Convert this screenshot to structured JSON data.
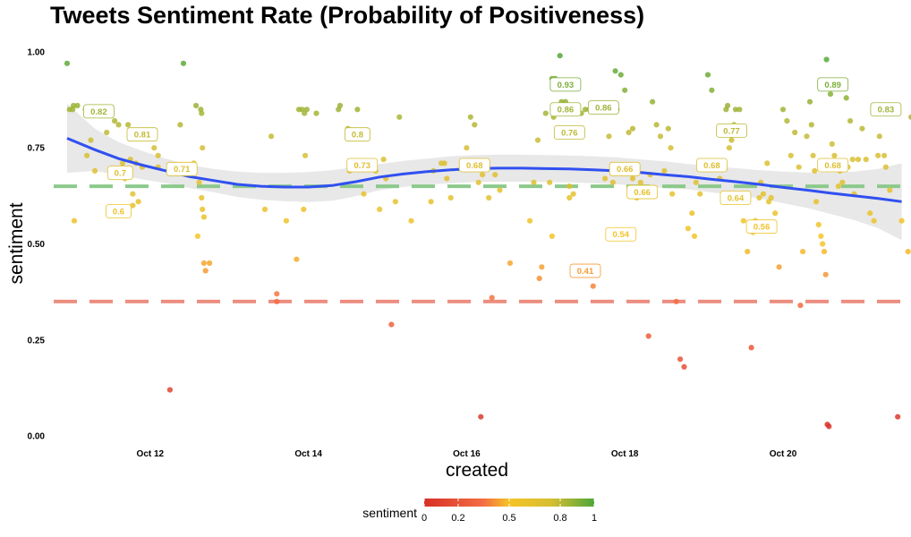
{
  "chart_data": {
    "type": "scatter",
    "title": "Tweets Sentiment Rate (Probability of Positiveness)",
    "xlabel": "created",
    "ylabel": "sentiment",
    "x_ticks": [
      {
        "x": 12,
        "label": "Oct 12"
      },
      {
        "x": 14,
        "label": "Oct 14"
      },
      {
        "x": 16,
        "label": "Oct 16"
      },
      {
        "x": 18,
        "label": "Oct 18"
      },
      {
        "x": 20,
        "label": "Oct 20"
      }
    ],
    "y_ticks": [
      {
        "y": 0,
        "label": "0.00"
      },
      {
        "y": 0.25,
        "label": "0.25"
      },
      {
        "y": 0.5,
        "label": "0.50"
      },
      {
        "y": 0.75,
        "label": "0.75"
      },
      {
        "y": 1,
        "label": "1.00"
      }
    ],
    "xlim": [
      10.78,
      21.55
    ],
    "ylim": [
      -0.03,
      1.03
    ],
    "grid": false,
    "reference_lines": [
      {
        "y": 0.65,
        "color": "#8cc98c",
        "style": "dashed"
      },
      {
        "y": 0.35,
        "color": "#ec8e80",
        "style": "dashed"
      }
    ],
    "color_scale": {
      "stops": [
        {
          "value": 0,
          "color": "#d73027"
        },
        {
          "value": 0.35,
          "color": "#f46d43"
        },
        {
          "value": 0.5,
          "color": "#f5c426"
        },
        {
          "value": 0.75,
          "color": "#d6be33"
        },
        {
          "value": 1,
          "color": "#4ea63a"
        }
      ]
    },
    "points": [
      [
        10.95,
        0.97
      ],
      [
        10.98,
        0.85
      ],
      [
        11.02,
        0.85
      ],
      [
        11.03,
        0.86
      ],
      [
        11.08,
        0.86
      ],
      [
        11.04,
        0.56
      ],
      [
        11.18,
        0.85
      ],
      [
        11.2,
        0.73
      ],
      [
        11.25,
        0.77
      ],
      [
        11.3,
        0.69
      ],
      [
        11.45,
        0.79
      ],
      [
        11.55,
        0.82
      ],
      [
        11.6,
        0.81
      ],
      [
        11.65,
        0.71
      ],
      [
        11.68,
        0.67
      ],
      [
        11.72,
        0.81
      ],
      [
        11.75,
        0.72
      ],
      [
        11.78,
        0.6
      ],
      [
        11.78,
        0.63
      ],
      [
        11.82,
        0.71
      ],
      [
        11.85,
        0.61
      ],
      [
        11.88,
        0.78
      ],
      [
        11.9,
        0.7
      ],
      [
        12.05,
        0.75
      ],
      [
        12.1,
        0.73
      ],
      [
        12.1,
        0.7
      ],
      [
        12.25,
        0.12
      ],
      [
        12.38,
        0.81
      ],
      [
        12.42,
        0.97
      ],
      [
        12.55,
        0.71
      ],
      [
        12.58,
        0.86
      ],
      [
        12.6,
        0.52
      ],
      [
        12.62,
        0.66
      ],
      [
        12.64,
        0.85
      ],
      [
        12.65,
        0.84
      ],
      [
        12.65,
        0.62
      ],
      [
        12.66,
        0.59
      ],
      [
        12.68,
        0.57
      ],
      [
        12.68,
        0.45
      ],
      [
        12.7,
        0.43
      ],
      [
        12.75,
        0.45
      ],
      [
        12.66,
        0.75
      ],
      [
        13.45,
        0.59
      ],
      [
        13.53,
        0.78
      ],
      [
        13.6,
        0.37
      ],
      [
        13.6,
        0.35
      ],
      [
        13.72,
        0.56
      ],
      [
        13.85,
        0.46
      ],
      [
        13.88,
        0.85
      ],
      [
        13.92,
        0.85
      ],
      [
        13.95,
        0.84
      ],
      [
        13.96,
        0.73
      ],
      [
        13.98,
        0.85
      ],
      [
        13.94,
        0.59
      ],
      [
        14.1,
        0.84
      ],
      [
        14.38,
        0.85
      ],
      [
        14.4,
        0.86
      ],
      [
        14.5,
        0.8
      ],
      [
        14.52,
        0.69
      ],
      [
        14.62,
        0.85
      ],
      [
        14.7,
        0.63
      ],
      [
        14.85,
        0.69
      ],
      [
        14.9,
        0.59
      ],
      [
        14.95,
        0.72
      ],
      [
        14.98,
        0.67
      ],
      [
        15.05,
        0.29
      ],
      [
        15.1,
        0.61
      ],
      [
        15.15,
        0.83
      ],
      [
        15.3,
        0.56
      ],
      [
        15.55,
        0.61
      ],
      [
        15.58,
        0.69
      ],
      [
        15.68,
        0.71
      ],
      [
        15.72,
        0.71
      ],
      [
        15.75,
        0.67
      ],
      [
        15.8,
        0.62
      ],
      [
        16.0,
        0.75
      ],
      [
        16.05,
        0.83
      ],
      [
        16.1,
        0.81
      ],
      [
        16.12,
        0.71
      ],
      [
        16.15,
        0.66
      ],
      [
        16.18,
        0.05
      ],
      [
        16.2,
        0.68
      ],
      [
        16.28,
        0.62
      ],
      [
        16.32,
        0.36
      ],
      [
        16.36,
        0.68
      ],
      [
        16.42,
        0.64
      ],
      [
        16.55,
        0.45
      ],
      [
        16.8,
        0.56
      ],
      [
        16.85,
        0.66
      ],
      [
        16.9,
        0.77
      ],
      [
        16.92,
        0.41
      ],
      [
        16.95,
        0.44
      ],
      [
        17.0,
        0.84
      ],
      [
        17.05,
        0.66
      ],
      [
        17.08,
        0.52
      ],
      [
        17.08,
        0.93
      ],
      [
        17.1,
        0.83
      ],
      [
        17.12,
        0.93
      ],
      [
        17.15,
        0.84
      ],
      [
        17.18,
        0.99
      ],
      [
        17.2,
        0.87
      ],
      [
        17.25,
        0.87
      ],
      [
        17.3,
        0.62
      ],
      [
        17.3,
        0.65
      ],
      [
        17.35,
        0.63
      ],
      [
        17.38,
        0.85
      ],
      [
        17.4,
        0.85
      ],
      [
        17.45,
        0.84
      ],
      [
        17.5,
        0.85
      ],
      [
        17.55,
        0.85
      ],
      [
        17.6,
        0.39
      ],
      [
        17.65,
        0.85
      ],
      [
        17.75,
        0.67
      ],
      [
        17.8,
        0.78
      ],
      [
        17.85,
        0.66
      ],
      [
        17.88,
        0.95
      ],
      [
        17.9,
        0.85
      ],
      [
        17.95,
        0.94
      ],
      [
        18.0,
        0.9
      ],
      [
        18.05,
        0.79
      ],
      [
        18.1,
        0.8
      ],
      [
        18.1,
        0.67
      ],
      [
        18.15,
        0.62
      ],
      [
        18.2,
        0.66
      ],
      [
        18.22,
        0.64
      ],
      [
        18.25,
        0.63
      ],
      [
        18.3,
        0.26
      ],
      [
        18.32,
        0.68
      ],
      [
        18.35,
        0.87
      ],
      [
        18.4,
        0.81
      ],
      [
        18.45,
        0.78
      ],
      [
        18.5,
        0.69
      ],
      [
        18.55,
        0.8
      ],
      [
        18.58,
        0.75
      ],
      [
        18.6,
        0.63
      ],
      [
        18.65,
        0.35
      ],
      [
        18.7,
        0.2
      ],
      [
        18.75,
        0.18
      ],
      [
        18.8,
        0.54
      ],
      [
        18.85,
        0.58
      ],
      [
        18.88,
        0.52
      ],
      [
        18.9,
        0.66
      ],
      [
        18.95,
        0.63
      ],
      [
        19.05,
        0.94
      ],
      [
        19.1,
        0.9
      ],
      [
        19.2,
        0.67
      ],
      [
        19.28,
        0.85
      ],
      [
        19.3,
        0.86
      ],
      [
        19.32,
        0.75
      ],
      [
        19.35,
        0.77
      ],
      [
        19.38,
        0.81
      ],
      [
        19.4,
        0.85
      ],
      [
        19.45,
        0.85
      ],
      [
        19.5,
        0.56
      ],
      [
        19.55,
        0.48
      ],
      [
        19.6,
        0.23
      ],
      [
        19.62,
        0.53
      ],
      [
        19.65,
        0.56
      ],
      [
        19.7,
        0.62
      ],
      [
        19.72,
        0.66
      ],
      [
        19.75,
        0.63
      ],
      [
        19.8,
        0.71
      ],
      [
        19.82,
        0.61
      ],
      [
        19.85,
        0.62
      ],
      [
        19.9,
        0.58
      ],
      [
        19.95,
        0.44
      ],
      [
        20.0,
        0.85
      ],
      [
        20.05,
        0.82
      ],
      [
        20.1,
        0.73
      ],
      [
        20.15,
        0.79
      ],
      [
        20.2,
        0.7
      ],
      [
        20.22,
        0.34
      ],
      [
        20.25,
        0.48
      ],
      [
        20.3,
        0.78
      ],
      [
        20.34,
        0.87
      ],
      [
        20.36,
        0.81
      ],
      [
        20.38,
        0.73
      ],
      [
        20.4,
        0.69
      ],
      [
        20.42,
        0.61
      ],
      [
        20.45,
        0.55
      ],
      [
        20.48,
        0.52
      ],
      [
        20.5,
        0.5
      ],
      [
        20.52,
        0.48
      ],
      [
        20.54,
        0.42
      ],
      [
        20.56,
        0.03
      ],
      [
        20.58,
        0.025
      ],
      [
        20.55,
        0.98
      ],
      [
        20.6,
        0.89
      ],
      [
        20.62,
        0.76
      ],
      [
        20.65,
        0.73
      ],
      [
        20.7,
        0.65
      ],
      [
        20.72,
        0.69
      ],
      [
        20.75,
        0.66
      ],
      [
        20.8,
        0.88
      ],
      [
        20.82,
        0.7
      ],
      [
        20.85,
        0.82
      ],
      [
        20.88,
        0.72
      ],
      [
        20.9,
        0.63
      ],
      [
        20.95,
        0.72
      ],
      [
        21.0,
        0.8
      ],
      [
        21.05,
        0.72
      ],
      [
        21.1,
        0.58
      ],
      [
        21.15,
        0.56
      ],
      [
        21.2,
        0.73
      ],
      [
        21.22,
        0.78
      ],
      [
        21.25,
        0.84
      ],
      [
        21.28,
        0.73
      ],
      [
        21.3,
        0.7
      ],
      [
        21.35,
        0.64
      ],
      [
        21.45,
        0.05
      ],
      [
        21.5,
        0.56
      ],
      [
        21.58,
        0.48
      ],
      [
        21.62,
        0.83
      ],
      [
        21.68,
        0.7
      ]
    ],
    "labels": [
      {
        "x": 11.35,
        "y": 0.845,
        "text": "0.82"
      },
      {
        "x": 11.9,
        "y": 0.785,
        "text": "0.81"
      },
      {
        "x": 11.62,
        "y": 0.685,
        "text": "0.7"
      },
      {
        "x": 11.6,
        "y": 0.585,
        "text": "0.6"
      },
      {
        "x": 12.4,
        "y": 0.695,
        "text": "0.71"
      },
      {
        "x": 14.62,
        "y": 0.785,
        "text": "0.8"
      },
      {
        "x": 14.68,
        "y": 0.705,
        "text": "0.73"
      },
      {
        "x": 16.1,
        "y": 0.705,
        "text": "0.68"
      },
      {
        "x": 17.25,
        "y": 0.915,
        "text": "0.93"
      },
      {
        "x": 17.25,
        "y": 0.85,
        "text": "0.86"
      },
      {
        "x": 17.73,
        "y": 0.855,
        "text": "0.86"
      },
      {
        "x": 17.3,
        "y": 0.79,
        "text": "0.76"
      },
      {
        "x": 17.5,
        "y": 0.43,
        "text": "0.41"
      },
      {
        "x": 18.0,
        "y": 0.695,
        "text": "0.66"
      },
      {
        "x": 18.22,
        "y": 0.635,
        "text": "0.66"
      },
      {
        "x": 17.95,
        "y": 0.525,
        "text": "0.54"
      },
      {
        "x": 19.1,
        "y": 0.705,
        "text": "0.68"
      },
      {
        "x": 19.35,
        "y": 0.795,
        "text": "0.77"
      },
      {
        "x": 19.4,
        "y": 0.62,
        "text": "0.64"
      },
      {
        "x": 19.73,
        "y": 0.545,
        "text": "0.56"
      },
      {
        "x": 20.63,
        "y": 0.705,
        "text": "0.68"
      },
      {
        "x": 20.63,
        "y": 0.915,
        "text": "0.89"
      },
      {
        "x": 21.3,
        "y": 0.85,
        "text": "0.83"
      }
    ],
    "smooth_line": [
      [
        10.95,
        0.775
      ],
      [
        11.3,
        0.745
      ],
      [
        11.6,
        0.722
      ],
      [
        11.9,
        0.705
      ],
      [
        12.2,
        0.69
      ],
      [
        12.5,
        0.675
      ],
      [
        12.8,
        0.665
      ],
      [
        13.1,
        0.655
      ],
      [
        13.4,
        0.65
      ],
      [
        13.7,
        0.648
      ],
      [
        14.0,
        0.648
      ],
      [
        14.3,
        0.652
      ],
      [
        14.6,
        0.662
      ],
      [
        14.9,
        0.674
      ],
      [
        15.2,
        0.682
      ],
      [
        15.5,
        0.688
      ],
      [
        15.8,
        0.693
      ],
      [
        16.1,
        0.696
      ],
      [
        16.4,
        0.697
      ],
      [
        16.7,
        0.697
      ],
      [
        17.0,
        0.696
      ],
      [
        17.3,
        0.695
      ],
      [
        17.6,
        0.693
      ],
      [
        17.9,
        0.69
      ],
      [
        18.2,
        0.686
      ],
      [
        18.5,
        0.68
      ],
      [
        18.8,
        0.675
      ],
      [
        19.1,
        0.668
      ],
      [
        19.4,
        0.662
      ],
      [
        19.7,
        0.655
      ],
      [
        20.0,
        0.647
      ],
      [
        20.3,
        0.64
      ],
      [
        20.6,
        0.632
      ],
      [
        20.9,
        0.625
      ],
      [
        21.2,
        0.618
      ],
      [
        21.5,
        0.61
      ]
    ],
    "band_upper": [
      [
        10.95,
        0.865
      ],
      [
        11.3,
        0.8
      ],
      [
        11.6,
        0.765
      ],
      [
        11.9,
        0.742
      ],
      [
        12.2,
        0.722
      ],
      [
        12.5,
        0.705
      ],
      [
        12.8,
        0.695
      ],
      [
        13.1,
        0.688
      ],
      [
        13.4,
        0.685
      ],
      [
        13.7,
        0.685
      ],
      [
        14.0,
        0.687
      ],
      [
        14.3,
        0.692
      ],
      [
        14.6,
        0.7
      ],
      [
        14.9,
        0.708
      ],
      [
        15.2,
        0.716
      ],
      [
        15.5,
        0.722
      ],
      [
        15.8,
        0.728
      ],
      [
        16.1,
        0.731
      ],
      [
        16.4,
        0.732
      ],
      [
        16.7,
        0.732
      ],
      [
        17.0,
        0.731
      ],
      [
        17.3,
        0.73
      ],
      [
        17.6,
        0.728
      ],
      [
        17.9,
        0.725
      ],
      [
        18.2,
        0.72
      ],
      [
        18.5,
        0.715
      ],
      [
        18.8,
        0.708
      ],
      [
        19.1,
        0.702
      ],
      [
        19.4,
        0.697
      ],
      [
        19.7,
        0.692
      ],
      [
        20.0,
        0.688
      ],
      [
        20.3,
        0.686
      ],
      [
        20.6,
        0.686
      ],
      [
        20.9,
        0.688
      ],
      [
        21.2,
        0.695
      ],
      [
        21.5,
        0.71
      ]
    ],
    "band_lower": [
      [
        10.95,
        0.685
      ],
      [
        11.3,
        0.69
      ],
      [
        11.6,
        0.679
      ],
      [
        11.9,
        0.668
      ],
      [
        12.2,
        0.658
      ],
      [
        12.5,
        0.645
      ],
      [
        12.8,
        0.635
      ],
      [
        13.1,
        0.622
      ],
      [
        13.4,
        0.615
      ],
      [
        13.7,
        0.611
      ],
      [
        14.0,
        0.609
      ],
      [
        14.3,
        0.612
      ],
      [
        14.6,
        0.624
      ],
      [
        14.9,
        0.64
      ],
      [
        15.2,
        0.648
      ],
      [
        15.5,
        0.654
      ],
      [
        15.8,
        0.658
      ],
      [
        16.1,
        0.661
      ],
      [
        16.4,
        0.662
      ],
      [
        16.7,
        0.662
      ],
      [
        17.0,
        0.661
      ],
      [
        17.3,
        0.66
      ],
      [
        17.6,
        0.658
      ],
      [
        17.9,
        0.655
      ],
      [
        18.2,
        0.652
      ],
      [
        18.5,
        0.645
      ],
      [
        18.8,
        0.642
      ],
      [
        19.1,
        0.634
      ],
      [
        19.4,
        0.627
      ],
      [
        19.7,
        0.618
      ],
      [
        20.0,
        0.606
      ],
      [
        20.3,
        0.594
      ],
      [
        20.6,
        0.578
      ],
      [
        20.9,
        0.562
      ],
      [
        21.2,
        0.541
      ],
      [
        21.5,
        0.51
      ]
    ],
    "legend": {
      "title": "sentiment",
      "ticks": [
        {
          "value": 0,
          "label": "0"
        },
        {
          "value": 0.2,
          "label": "0.2"
        },
        {
          "value": 0.5,
          "label": "0.5"
        },
        {
          "value": 0.8,
          "label": "0.8"
        },
        {
          "value": 1,
          "label": "1"
        }
      ],
      "placement": "bottom"
    }
  }
}
